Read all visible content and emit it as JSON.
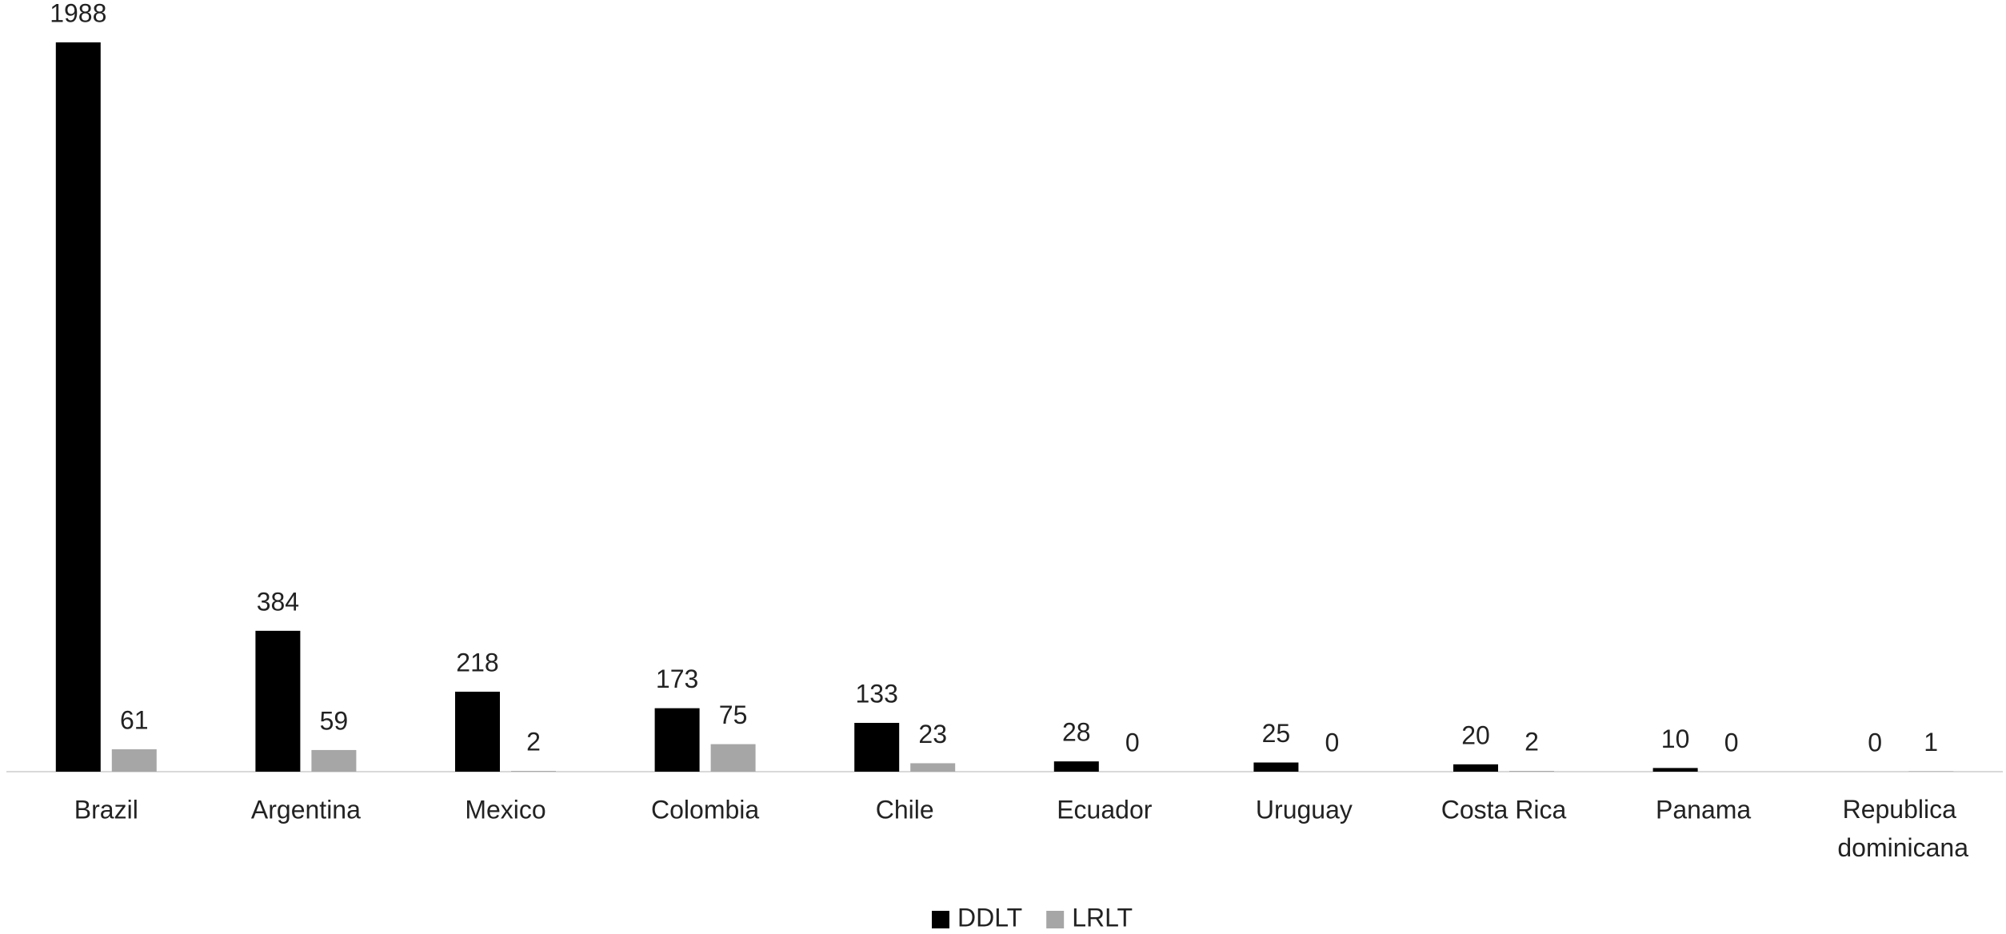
{
  "chart_data": {
    "type": "bar",
    "categories": [
      "Brazil",
      "Argentina",
      "Mexico",
      "Colombia",
      "Chile",
      "Ecuador",
      "Uruguay",
      "Costa Rica",
      "Panama",
      "Republica dominicana"
    ],
    "series": [
      {
        "name": "DDLT",
        "color": "#000000",
        "values": [
          1988,
          384,
          218,
          173,
          133,
          28,
          25,
          20,
          10,
          0
        ]
      },
      {
        "name": "LRLT",
        "color": "#a6a6a6",
        "values": [
          61,
          59,
          2,
          75,
          23,
          0,
          0,
          2,
          0,
          1
        ]
      }
    ],
    "legend": "bottom"
  }
}
